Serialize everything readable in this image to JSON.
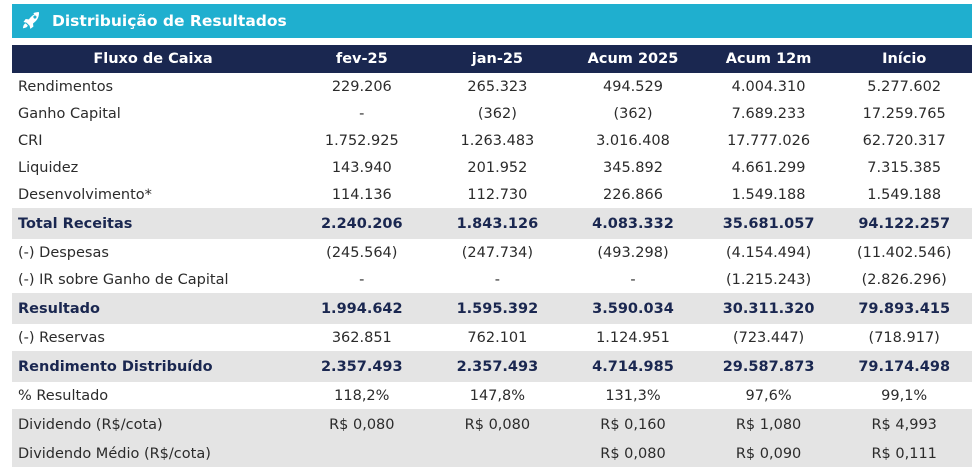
{
  "title": "Distribuição de Resultados",
  "icon": "rocket-icon",
  "colors": {
    "title_bar": "#1fafcf",
    "header": "#1a2750",
    "shade": "#e4e4e4"
  },
  "headers": [
    "Fluxo de Caixa",
    "fev-25",
    "jan-25",
    "Acum 2025",
    "Acum 12m",
    "Início"
  ],
  "rows": [
    {
      "label": "Rendimentos",
      "values": [
        "229.206",
        "265.323",
        "494.529",
        "4.004.310",
        "5.277.602"
      ],
      "bold": false,
      "shade": false
    },
    {
      "label": "Ganho Capital",
      "values": [
        "-",
        "(362)",
        "(362)",
        "7.689.233",
        "17.259.765"
      ],
      "bold": false,
      "shade": false
    },
    {
      "label": "CRI",
      "values": [
        "1.752.925",
        "1.263.483",
        "3.016.408",
        "17.777.026",
        "62.720.317"
      ],
      "bold": false,
      "shade": false
    },
    {
      "label": "Liquidez",
      "values": [
        "143.940",
        "201.952",
        "345.892",
        "4.661.299",
        "7.315.385"
      ],
      "bold": false,
      "shade": false
    },
    {
      "label": "Desenvolvimento*",
      "values": [
        "114.136",
        "112.730",
        "226.866",
        "1.549.188",
        "1.549.188"
      ],
      "bold": false,
      "shade": false
    },
    {
      "label": "Total Receitas",
      "values": [
        "2.240.206",
        "1.843.126",
        "4.083.332",
        "35.681.057",
        "94.122.257"
      ],
      "bold": true,
      "shade": true
    },
    {
      "label": "(-) Despesas",
      "values": [
        "(245.564)",
        "(247.734)",
        "(493.298)",
        "(4.154.494)",
        "(11.402.546)"
      ],
      "bold": false,
      "shade": false
    },
    {
      "label": "(-) IR sobre Ganho de Capital",
      "values": [
        "-",
        "-",
        "-",
        "(1.215.243)",
        "(2.826.296)"
      ],
      "bold": false,
      "shade": false
    },
    {
      "label": "Resultado",
      "values": [
        "1.994.642",
        "1.595.392",
        "3.590.034",
        "30.311.320",
        "79.893.415"
      ],
      "bold": true,
      "shade": true
    },
    {
      "label": "(-) Reservas",
      "values": [
        "362.851",
        "762.101",
        "1.124.951",
        "(723.447)",
        "(718.917)"
      ],
      "bold": false,
      "shade": false
    },
    {
      "label": "Rendimento Distribuído",
      "values": [
        "2.357.493",
        "2.357.493",
        "4.714.985",
        "29.587.873",
        "79.174.498"
      ],
      "bold": true,
      "shade": true
    },
    {
      "label": "% Resultado",
      "values": [
        "118,2%",
        "147,8%",
        "131,3%",
        "97,6%",
        "99,1%"
      ],
      "bold": false,
      "shade": false
    },
    {
      "label": "Dividendo (R$/cota)",
      "values": [
        "R$ 0,080",
        "R$ 0,080",
        "R$ 0,160",
        "R$ 1,080",
        "R$ 4,993"
      ],
      "bold": false,
      "shade": true
    },
    {
      "label": "Dividendo Médio (R$/cota)",
      "values": [
        "",
        "",
        "R$ 0,080",
        "R$ 0,090",
        "R$ 0,111"
      ],
      "bold": false,
      "shade": true
    }
  ]
}
